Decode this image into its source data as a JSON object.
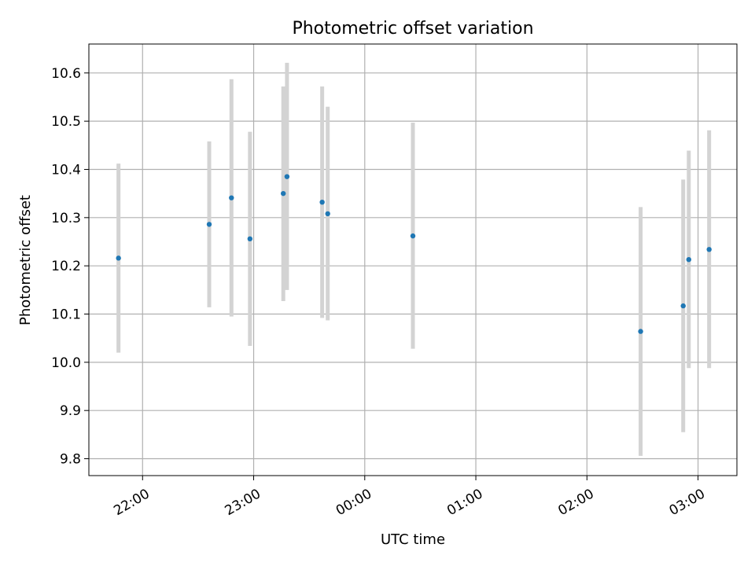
{
  "chart_data": {
    "type": "scatter",
    "title": "Photometric offset variation",
    "xlabel": "UTC time",
    "ylabel": "Photometric offset",
    "x_ticks": [
      "22:00",
      "23:00",
      "00:00",
      "01:00",
      "02:00",
      "03:00"
    ],
    "y_ticks": [
      "9.8",
      "9.9",
      "10.0",
      "10.1",
      "10.2",
      "10.3",
      "10.4",
      "10.5",
      "10.6"
    ],
    "grid": true,
    "xlim": [
      "21:31",
      "03:21"
    ],
    "ylim": [
      9.765,
      10.66
    ],
    "series": [
      {
        "values": [
          {
            "x": "21:47",
            "y": 10.216,
            "y_low": 10.02,
            "y_high": 10.412
          },
          {
            "x": "22:36",
            "y": 10.286,
            "y_low": 10.114,
            "y_high": 10.458
          },
          {
            "x": "22:48",
            "y": 10.341,
            "y_low": 10.095,
            "y_high": 10.587
          },
          {
            "x": "22:58",
            "y": 10.256,
            "y_low": 10.034,
            "y_high": 10.478
          },
          {
            "x": "23:16",
            "y": 10.35,
            "y_low": 10.127,
            "y_high": 10.572
          },
          {
            "x": "23:18",
            "y": 10.385,
            "y_low": 10.15,
            "y_high": 10.621
          },
          {
            "x": "23:37",
            "y": 10.332,
            "y_low": 10.092,
            "y_high": 10.572
          },
          {
            "x": "23:40",
            "y": 10.308,
            "y_low": 10.087,
            "y_high": 10.53
          },
          {
            "x": "00:26",
            "y": 10.262,
            "y_low": 10.028,
            "y_high": 10.497
          },
          {
            "x": "02:29",
            "y": 10.064,
            "y_low": 9.806,
            "y_high": 10.322
          },
          {
            "x": "02:52",
            "y": 10.117,
            "y_low": 9.855,
            "y_high": 10.379
          },
          {
            "x": "02:55",
            "y": 10.213,
            "y_low": 9.988,
            "y_high": 10.439
          },
          {
            "x": "03:06",
            "y": 10.234,
            "y_low": 9.988,
            "y_high": 10.481
          }
        ]
      }
    ],
    "colors": {
      "marker": "#1f77b4",
      "errorbar": "#d3d3d3",
      "grid": "#b0b0b0"
    }
  }
}
